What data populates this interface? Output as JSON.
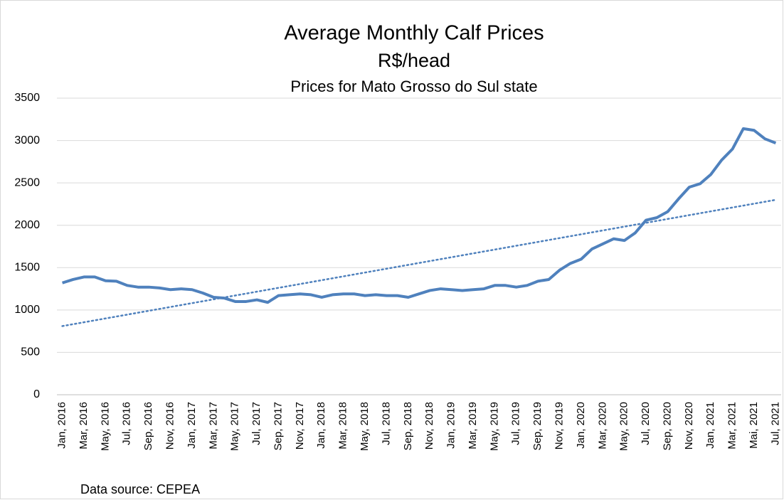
{
  "chart_data": {
    "type": "line",
    "title": "Average Monthly Calf Prices",
    "subtitle": "R$/head",
    "subtitle2": "Prices for Mato Grosso do Sul state",
    "source": "Data source: CEPEA",
    "categories": [
      "Jan, 2016",
      null,
      "Mar, 2016",
      null,
      "May, 2016",
      null,
      "Jul, 2016",
      null,
      "Sep, 2016",
      null,
      "Nov, 2016",
      null,
      "Jan, 2017",
      null,
      "Mar, 2017",
      null,
      "May, 2017",
      null,
      "Jul, 2017",
      null,
      "Sep, 2017",
      null,
      "Nov, 2017",
      null,
      "Jan, 2018",
      null,
      "Mar, 2018",
      null,
      "May, 2018",
      null,
      "Jul, 2018",
      null,
      "Sep, 2018",
      null,
      "Nov, 2018",
      null,
      "Jan, 2019",
      null,
      "Mar, 2019",
      null,
      "May, 2019",
      null,
      "Jul, 2019",
      null,
      "Sep, 2019",
      null,
      "Nov, 2019",
      null,
      "Jan, 2020",
      null,
      "Mar, 2020",
      null,
      "May, 2020",
      null,
      "Jul, 2020",
      null,
      "Sep, 2020",
      null,
      "Nov, 2020",
      null,
      "Jan, 2021",
      null,
      "Mar, 2021",
      null,
      "Mai, 2021",
      null,
      "Jul, 2021"
    ],
    "series": [
      {
        "color": "#4f81bd",
        "values": [
          1320,
          1360,
          1390,
          1390,
          1345,
          1340,
          1290,
          1270,
          1270,
          1260,
          1240,
          1250,
          1240,
          1200,
          1150,
          1140,
          1100,
          1100,
          1120,
          1090,
          1170,
          1180,
          1190,
          1180,
          1150,
          1180,
          1190,
          1190,
          1170,
          1180,
          1170,
          1170,
          1150,
          1190,
          1230,
          1250,
          1240,
          1230,
          1240,
          1250,
          1290,
          1290,
          1270,
          1290,
          1340,
          1360,
          1470,
          1550,
          1600,
          1720,
          1780,
          1840,
          1820,
          1910,
          2060,
          2090,
          2160,
          2310,
          2450,
          2490,
          2600,
          2770,
          2900,
          3140,
          3120,
          3020,
          2970
        ]
      }
    ],
    "trendline": {
      "color": "#4f81bd",
      "values": [
        810,
        2300
      ]
    },
    "ylim": [
      0,
      3500
    ],
    "yticks": [
      0,
      500,
      1000,
      1500,
      2000,
      2500,
      3000,
      3500
    ],
    "grid": true
  }
}
